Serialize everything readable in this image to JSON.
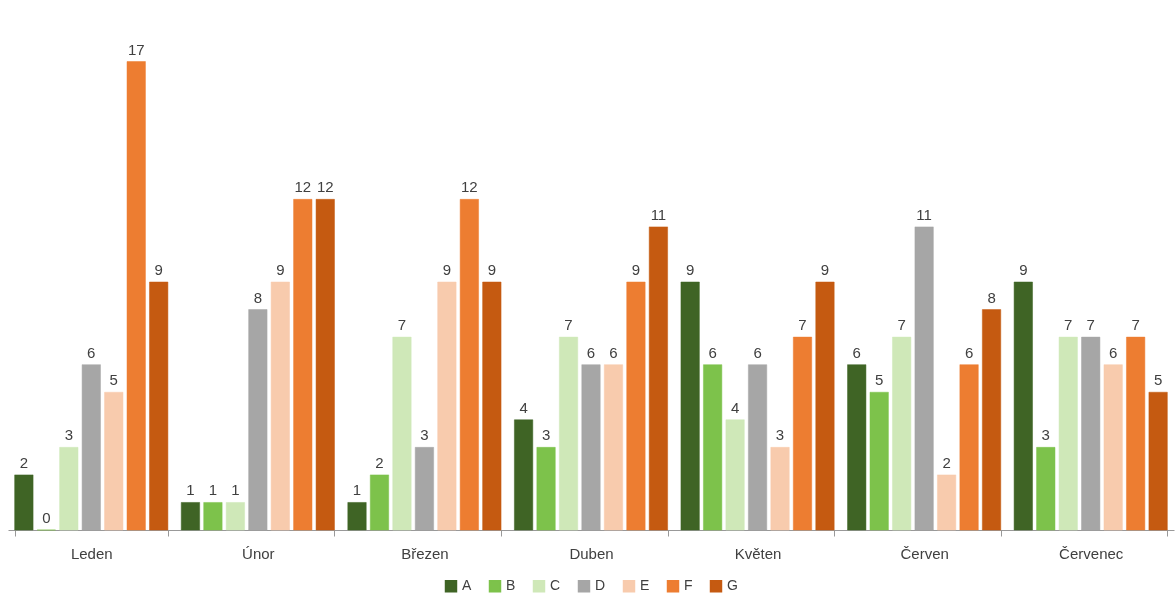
{
  "chart_data": {
    "type": "bar",
    "categories": [
      "Leden",
      "Únor",
      "Březen",
      "Duben",
      "Květen",
      "Červen",
      "Červenec"
    ],
    "series": [
      {
        "name": "A",
        "color": "#3f6425",
        "values": [
          2,
          1,
          1,
          4,
          9,
          6,
          9
        ]
      },
      {
        "name": "B",
        "color": "#7dc24b",
        "values": [
          0,
          1,
          2,
          3,
          6,
          5,
          3
        ]
      },
      {
        "name": "C",
        "color": "#cfe8b8",
        "values": [
          3,
          1,
          7,
          7,
          4,
          7,
          7
        ]
      },
      {
        "name": "D",
        "color": "#a6a6a6",
        "values": [
          6,
          8,
          3,
          6,
          6,
          11,
          7
        ]
      },
      {
        "name": "E",
        "color": "#f8cbad",
        "values": [
          5,
          9,
          9,
          6,
          3,
          2,
          6
        ]
      },
      {
        "name": "F",
        "color": "#ed7d31",
        "values": [
          17,
          12,
          12,
          9,
          7,
          6,
          7
        ]
      },
      {
        "name": "G",
        "color": "#c55a11",
        "values": [
          9,
          12,
          9,
          11,
          9,
          8,
          5
        ]
      }
    ],
    "data_labels": true,
    "legend": "bottom",
    "grid": false,
    "tick_labels": "x"
  }
}
